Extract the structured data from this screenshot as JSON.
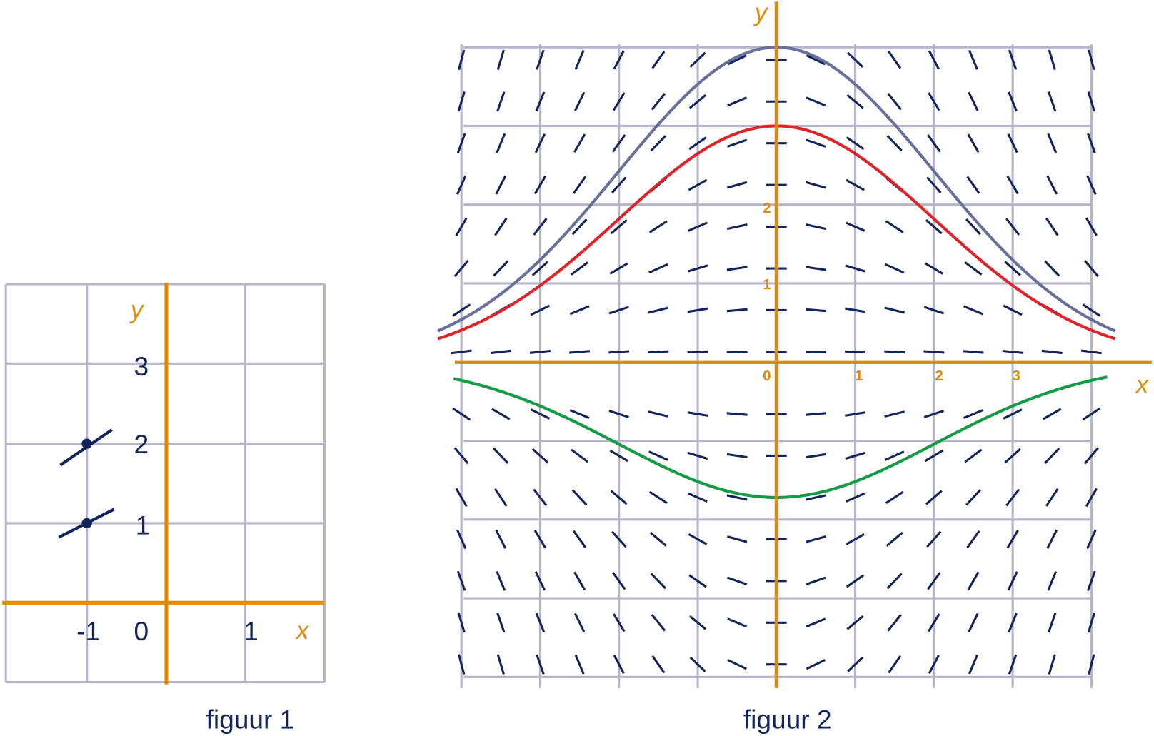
{
  "figure1": {
    "caption": "figuur 1",
    "x_axis_label": "x",
    "y_axis_label": "y",
    "x_labels": [
      "-1",
      "0",
      "1"
    ],
    "y_labels": [
      "3",
      "2",
      "1"
    ]
  },
  "figure2": {
    "caption": "figuur 2",
    "x_axis_label": "x",
    "y_axis_label": "y",
    "x_labels": [
      "0",
      "1",
      "2",
      "3"
    ],
    "y_labels": [
      "2",
      "1"
    ]
  }
}
